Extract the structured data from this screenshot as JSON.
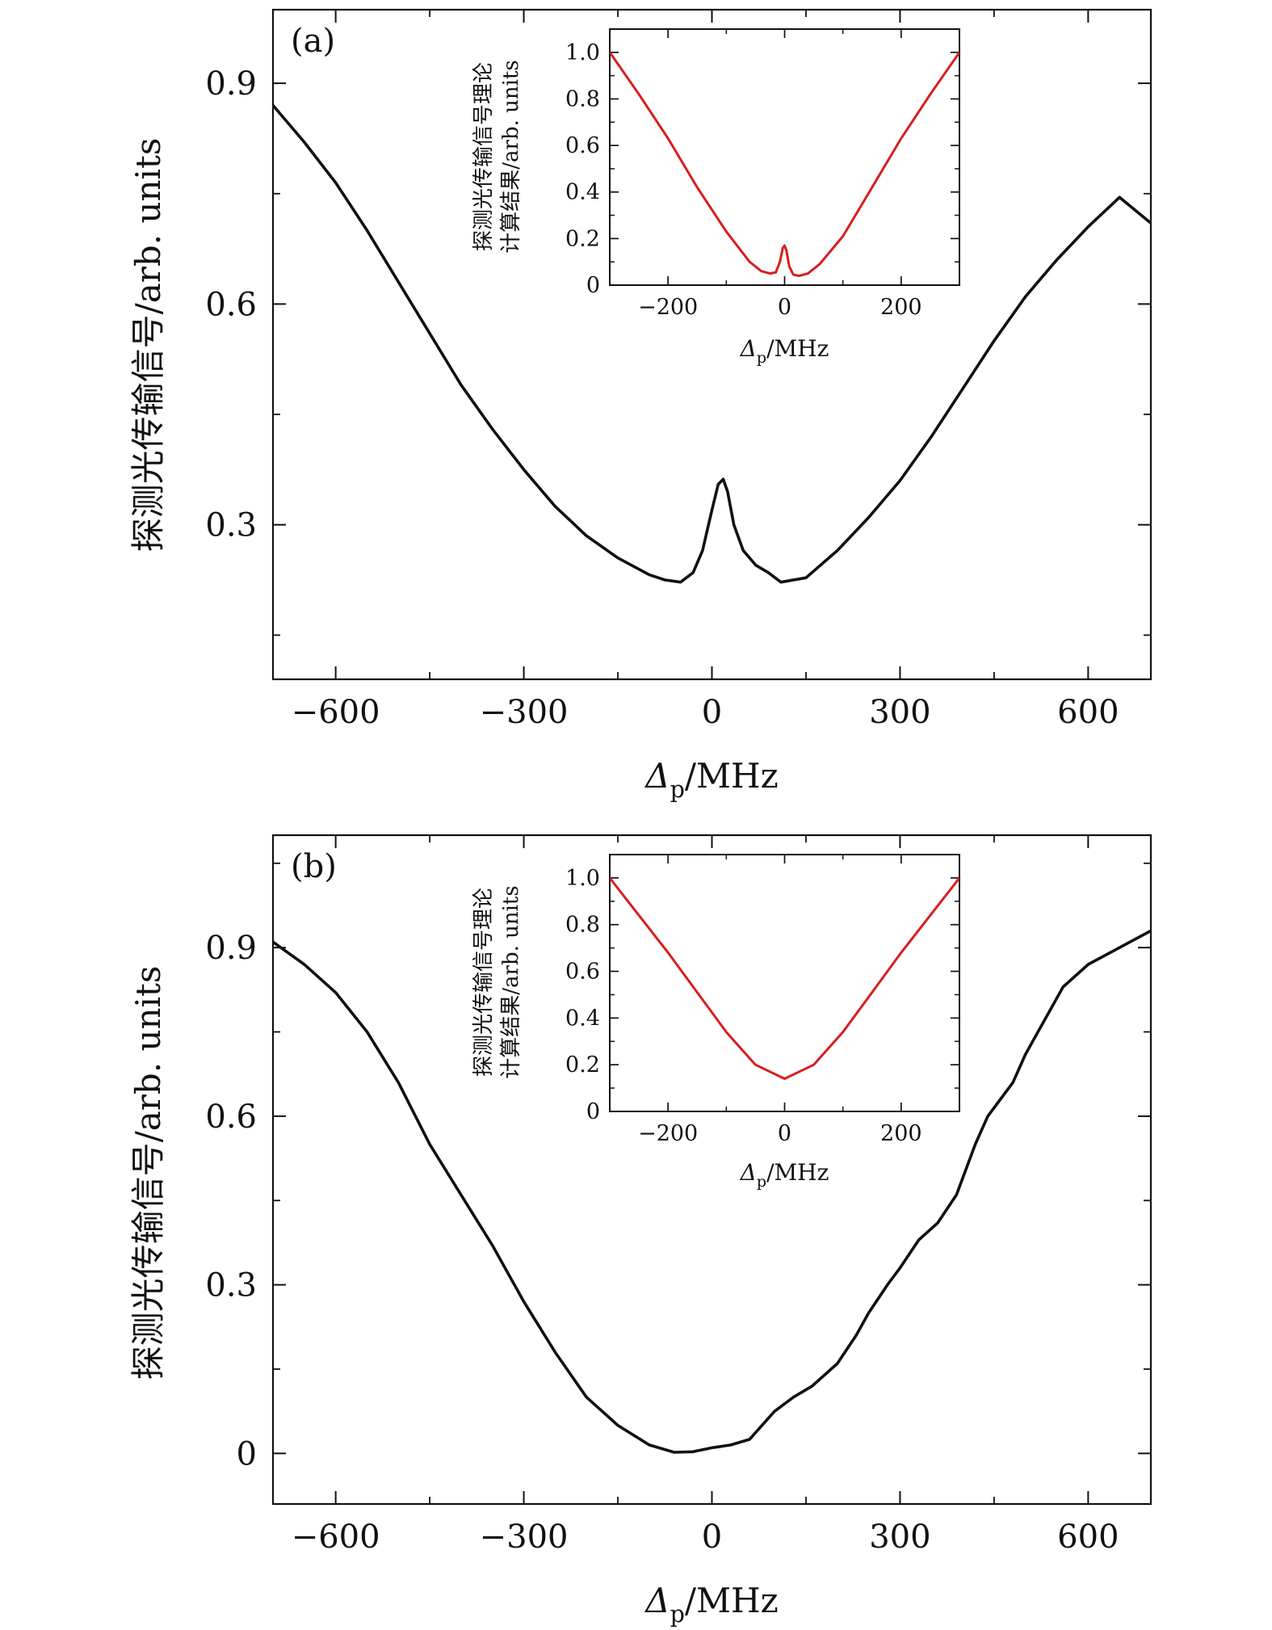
{
  "chart_data": [
    {
      "panel": "(a)",
      "type": "line",
      "xlabel": "Δp/MHz",
      "ylabel": "探测光传输信号/arb. units",
      "xlim": [
        -700,
        700
      ],
      "ylim": [
        0.09,
        1.0
      ],
      "xticks": [
        -600,
        -300,
        0,
        300,
        600
      ],
      "yticks": [
        0.3,
        0.6,
        0.9
      ],
      "xtick_labels": [
        "−600",
        "−300",
        "0",
        "300",
        "600"
      ],
      "ytick_labels": [
        "0.3",
        "0.6",
        "0.9"
      ],
      "color": "#111111",
      "series": [
        {
          "x": [
            -700,
            -650,
            -600,
            -550,
            -500,
            -450,
            -400,
            -350,
            -300,
            -250,
            -200,
            -150,
            -100,
            -75,
            -50,
            -30,
            -15,
            0,
            10,
            18,
            25,
            35,
            50,
            70,
            90,
            110,
            150,
            200,
            250,
            300,
            350,
            400,
            450,
            500,
            550,
            600,
            650,
            700
          ],
          "y": [
            0.87,
            0.82,
            0.765,
            0.7,
            0.63,
            0.56,
            0.49,
            0.43,
            0.375,
            0.325,
            0.285,
            0.255,
            0.232,
            0.225,
            0.222,
            0.235,
            0.265,
            0.32,
            0.355,
            0.362,
            0.345,
            0.3,
            0.265,
            0.245,
            0.235,
            0.222,
            0.228,
            0.265,
            0.31,
            0.36,
            0.42,
            0.485,
            0.55,
            0.61,
            0.66,
            0.705,
            0.745,
            0.71
          ]
        }
      ],
      "inset": {
        "type": "line",
        "xlabel": "Δp/MHz",
        "ylabel_line1": "探测光传输信号理论",
        "ylabel_line2": "计算结果/arb. units",
        "xlim": [
          -300,
          300
        ],
        "ylim": [
          0,
          1.1
        ],
        "xticks": [
          -200,
          0,
          200
        ],
        "xtick_labels": [
          "−200",
          "0",
          "200"
        ],
        "yticks": [
          0,
          0.2,
          0.4,
          0.6,
          0.8,
          1.0
        ],
        "ytick_labels": [
          "0",
          "0.2",
          "0.4",
          "0.6",
          "0.8",
          "1.0"
        ],
        "color": "#d81e1e",
        "series": [
          {
            "x": [
              -300,
              -250,
              -200,
              -150,
              -100,
              -60,
              -40,
              -25,
              -15,
              -8,
              -3,
              0,
              3,
              8,
              15,
              25,
              40,
              60,
              100,
              150,
              200,
              250,
              300
            ],
            "y": [
              1.0,
              0.82,
              0.63,
              0.42,
              0.23,
              0.1,
              0.06,
              0.05,
              0.055,
              0.1,
              0.16,
              0.17,
              0.15,
              0.08,
              0.045,
              0.04,
              0.05,
              0.09,
              0.21,
              0.42,
              0.63,
              0.82,
              1.0
            ]
          }
        ]
      }
    },
    {
      "panel": "(b)",
      "type": "line",
      "xlabel": "Δp/MHz",
      "ylabel": "探测光传输信号/arb. units",
      "xlim": [
        -700,
        700
      ],
      "ylim": [
        -0.09,
        1.1
      ],
      "xticks": [
        -600,
        -300,
        0,
        300,
        600
      ],
      "yticks": [
        0,
        0.3,
        0.6,
        0.9
      ],
      "xtick_labels": [
        "−600",
        "−300",
        "0",
        "300",
        "600"
      ],
      "ytick_labels": [
        "0",
        "0.3",
        "0.6",
        "0.9"
      ],
      "color": "#111111",
      "series": [
        {
          "x": [
            -700,
            -650,
            -600,
            -550,
            -500,
            -450,
            -400,
            -350,
            -300,
            -250,
            -200,
            -150,
            -100,
            -60,
            -30,
            0,
            30,
            60,
            80,
            100,
            130,
            160,
            200,
            230,
            250,
            280,
            300,
            330,
            360,
            390,
            420,
            440,
            460,
            480,
            500,
            530,
            560,
            600,
            650,
            700
          ],
          "y": [
            0.91,
            0.87,
            0.82,
            0.75,
            0.66,
            0.55,
            0.46,
            0.37,
            0.27,
            0.18,
            0.1,
            0.05,
            0.015,
            0.002,
            0.003,
            0.01,
            0.015,
            0.025,
            0.05,
            0.075,
            0.1,
            0.12,
            0.16,
            0.21,
            0.25,
            0.3,
            0.33,
            0.38,
            0.41,
            0.46,
            0.55,
            0.6,
            0.63,
            0.66,
            0.71,
            0.77,
            0.83,
            0.87,
            0.9,
            0.93
          ]
        }
      ],
      "inset": {
        "type": "line",
        "xlabel": "Δp/MHz",
        "ylabel_line1": "探测光传输信号理论",
        "ylabel_line2": "计算结果/arb. units",
        "xlim": [
          -300,
          300
        ],
        "ylim": [
          0,
          1.1
        ],
        "xticks": [
          -200,
          0,
          200
        ],
        "xtick_labels": [
          "−200",
          "0",
          "200"
        ],
        "yticks": [
          0,
          0.2,
          0.4,
          0.6,
          0.8,
          1.0
        ],
        "ytick_labels": [
          "0",
          "0.2",
          "0.4",
          "0.6",
          "0.8",
          "1.0"
        ],
        "color": "#d81e1e",
        "series": [
          {
            "x": [
              -300,
              -250,
              -200,
              -150,
              -100,
              -50,
              0,
              50,
              100,
              150,
              200,
              250,
              300
            ],
            "y": [
              1.0,
              0.84,
              0.68,
              0.51,
              0.34,
              0.2,
              0.14,
              0.2,
              0.34,
              0.51,
              0.68,
              0.84,
              1.0
            ]
          }
        ]
      }
    }
  ]
}
